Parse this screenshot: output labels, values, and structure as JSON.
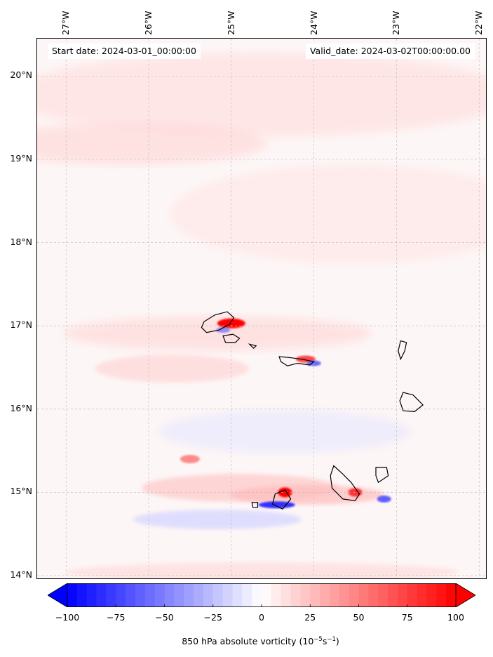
{
  "map": {
    "start_label": "Start date: 2024-03-01_00:00:00",
    "valid_label": "Valid_date: 2024-03-02T00:00:00.00",
    "extent": {
      "lon_min": -27.35,
      "lon_max": -21.9,
      "lat_min": 13.95,
      "lat_max": 20.45
    },
    "lon_ticks": [
      {
        "value": -27,
        "label": "27°W"
      },
      {
        "value": -26,
        "label": "26°W"
      },
      {
        "value": -25,
        "label": "25°W"
      },
      {
        "value": -24,
        "label": "24°W"
      },
      {
        "value": -23,
        "label": "23°W"
      },
      {
        "value": -22,
        "label": "22°W"
      }
    ],
    "lat_ticks": [
      {
        "value": 20,
        "label": "20°N"
      },
      {
        "value": 19,
        "label": "19°N"
      },
      {
        "value": 18,
        "label": "18°N"
      },
      {
        "value": 17,
        "label": "17°N"
      },
      {
        "value": 16,
        "label": "16°N"
      },
      {
        "value": 15,
        "label": "15°N"
      },
      {
        "value": 14,
        "label": "14°N"
      }
    ],
    "field": "850 hPa absolute vorticity",
    "colors": {
      "negative": "#0000ff",
      "positive": "#ff0000",
      "neutral": "#ffffff",
      "coast": "#000000",
      "grid": "#bbbbbb"
    }
  },
  "colorbar": {
    "min": -100,
    "max": 100,
    "ticks": [
      "−100",
      "−75",
      "−50",
      "−25",
      "0",
      "25",
      "50",
      "75",
      "100"
    ],
    "tick_values": [
      -100,
      -75,
      -50,
      -25,
      0,
      25,
      50,
      75,
      100
    ],
    "label_main": "850 hPa absolute vorticity (10",
    "label_exp1": "−5",
    "label_mid": "s",
    "label_exp2": "−1",
    "label_end": ")"
  }
}
